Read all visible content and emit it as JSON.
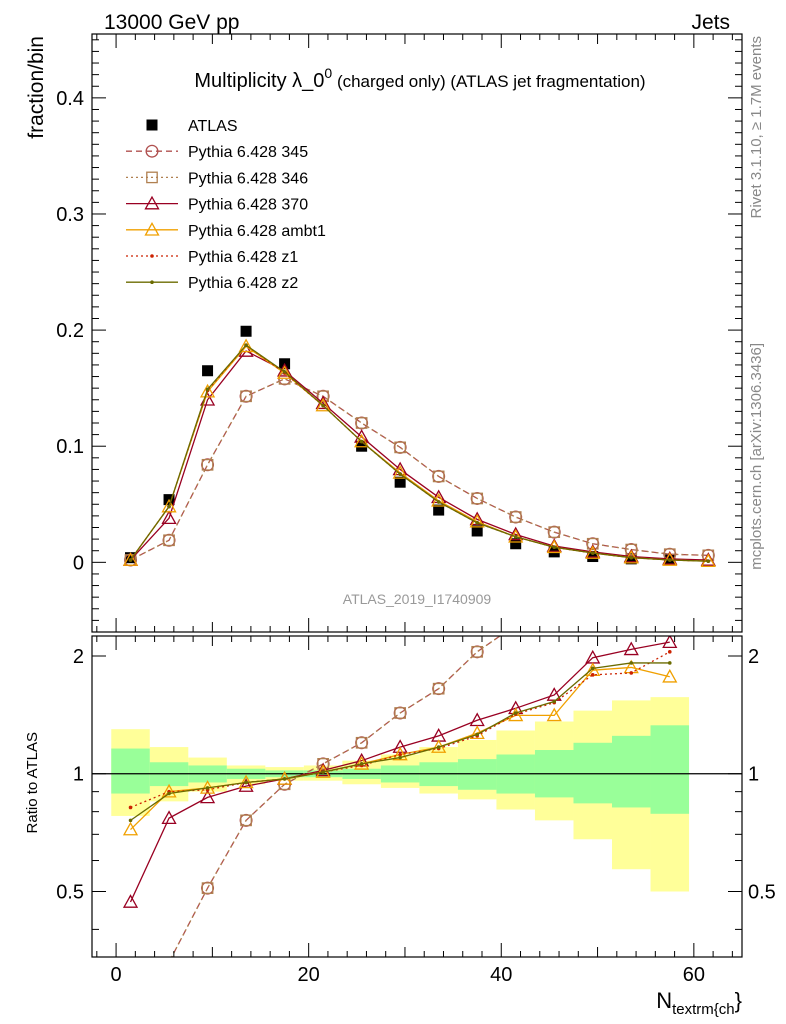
{
  "header": {
    "left": "13000 GeV pp",
    "right": "Jets",
    "side_rivet": "Rivet 3.1.10, ≥ 1.7M events",
    "side_mcplots": "mcplots.cern.ch [arXiv:1306.3436]",
    "watermark": "ATLAS_2019_I1740909"
  },
  "chart_data": [
    {
      "type": "scatter",
      "panel": "main",
      "title_main": "Multiplicity λ_0",
      "title_sup": "0",
      "title_rest": " (charged only) (ATLAS jet fragmentation)",
      "ylabel": "fraction/bin",
      "xlim": [
        -2.5,
        65
      ],
      "ylim": [
        -0.06,
        0.455
      ],
      "yticks": [
        0,
        0.1,
        0.2,
        0.3,
        0.4
      ],
      "ytick_labels": [
        "0",
        "0.1",
        "0.2",
        "0.3",
        "0.4"
      ],
      "x": [
        1.5,
        5.5,
        9.5,
        13.5,
        17.5,
        21.5,
        25.5,
        29.5,
        33.5,
        37.5,
        41.5,
        45.5,
        49.5,
        53.5,
        57.5,
        61.5
      ],
      "series": [
        {
          "name": "ATLAS",
          "color": "#000000",
          "marker": "filled-square",
          "line": "none",
          "values": [
            0.004,
            0.054,
            0.165,
            0.199,
            0.171,
            null,
            0.1,
            0.069,
            0.045,
            0.027,
            0.016,
            0.009,
            0.005,
            0.003,
            0.002,
            null
          ]
        },
        {
          "name": "Pythia 6.428 345",
          "color": "#b0504f",
          "marker": "open-circle",
          "line": "dashed",
          "values": [
            0.002,
            0.019,
            0.084,
            0.143,
            0.158,
            0.143,
            0.12,
            0.099,
            0.074,
            0.055,
            0.039,
            0.026,
            0.016,
            0.011,
            0.007,
            0.006
          ]
        },
        {
          "name": "Pythia 6.428 346",
          "color": "#b08050",
          "marker": "open-square",
          "line": "dotted",
          "values": [
            0.002,
            0.019,
            0.084,
            0.143,
            0.158,
            0.143,
            0.12,
            0.099,
            0.074,
            0.055,
            0.039,
            0.026,
            0.016,
            0.011,
            0.007,
            0.006
          ]
        },
        {
          "name": "Pythia 6.428 370",
          "color": "#990022",
          "marker": "open-triangle",
          "line": "solid",
          "values": [
            0.002,
            0.038,
            0.14,
            0.182,
            0.165,
            0.137,
            0.108,
            0.08,
            0.056,
            0.037,
            0.024,
            0.014,
            0.009,
            0.005,
            0.003,
            0.002
          ]
        },
        {
          "name": "Pythia 6.428 ambt1",
          "color": "#f0a000",
          "marker": "open-triangle",
          "line": "solid",
          "values": [
            0.002,
            0.048,
            0.147,
            0.186,
            0.163,
            0.135,
            0.104,
            0.077,
            0.053,
            0.035,
            0.022,
            0.013,
            0.008,
            0.004,
            0.002,
            0.001
          ]
        },
        {
          "name": "Pythia 6.428 z1",
          "color": "#cc2200",
          "marker": "dot",
          "line": "dotted",
          "values": [
            0.002,
            0.048,
            0.148,
            0.187,
            0.163,
            0.135,
            0.104,
            0.076,
            0.052,
            0.034,
            0.022,
            0.013,
            0.008,
            0.004,
            0.002,
            0.001
          ]
        },
        {
          "name": "Pythia 6.428 z2",
          "color": "#6b6b00",
          "marker": "dot",
          "line": "solid",
          "values": [
            0.002,
            0.048,
            0.149,
            0.187,
            0.164,
            0.135,
            0.104,
            0.076,
            0.052,
            0.034,
            0.022,
            0.013,
            0.008,
            0.004,
            0.002,
            0.001
          ]
        }
      ]
    },
    {
      "type": "line",
      "panel": "ratio",
      "ylabel": "Ratio to ATLAS",
      "xlabel_main": "N",
      "xlabel_sub": "textrm{ch",
      "xlabel_tail": "}",
      "xlim": [
        -2.5,
        65
      ],
      "ylim": [
        0.34,
        2.25
      ],
      "xticks": [
        0,
        20,
        40,
        60
      ],
      "xtick_labels": [
        "0",
        "20",
        "40",
        "60"
      ],
      "yticks": [
        0.5,
        1,
        2
      ],
      "ytick_labels": [
        "0.5",
        "1",
        "2"
      ],
      "band_edges": [
        -0.5,
        3.5,
        7.5,
        11.5,
        15.5,
        19.5,
        23.5,
        27.5,
        31.5,
        35.5,
        39.5,
        43.5,
        47.5,
        51.5,
        55.5,
        59.5
      ],
      "band_inner": [
        [
          0.89,
          1.16
        ],
        [
          0.93,
          1.07
        ],
        [
          0.95,
          1.05
        ],
        [
          0.97,
          1.03
        ],
        [
          0.98,
          1.02
        ],
        [
          0.98,
          1.02
        ],
        [
          0.97,
          1.03
        ],
        [
          0.95,
          1.05
        ],
        [
          0.93,
          1.07
        ],
        [
          0.91,
          1.09
        ],
        [
          0.89,
          1.12
        ],
        [
          0.87,
          1.15
        ],
        [
          0.84,
          1.2
        ],
        [
          0.82,
          1.25
        ],
        [
          0.79,
          1.33
        ]
      ],
      "band_outer": [
        [
          0.78,
          1.3
        ],
        [
          0.85,
          1.17
        ],
        [
          0.9,
          1.1
        ],
        [
          0.94,
          1.05
        ],
        [
          0.96,
          1.04
        ],
        [
          0.96,
          1.05
        ],
        [
          0.94,
          1.08
        ],
        [
          0.92,
          1.12
        ],
        [
          0.89,
          1.17
        ],
        [
          0.86,
          1.22
        ],
        [
          0.81,
          1.29
        ],
        [
          0.76,
          1.36
        ],
        [
          0.68,
          1.45
        ],
        [
          0.57,
          1.54
        ],
        [
          0.5,
          1.57
        ]
      ],
      "x": [
        1.5,
        5.5,
        9.5,
        13.5,
        17.5,
        21.5,
        25.5,
        29.5,
        33.5,
        37.5,
        41.5,
        45.5,
        49.5,
        53.5,
        57.5,
        61.5
      ],
      "series": [
        {
          "name": "Pythia 6.428 345",
          "color": "#b0504f",
          "marker": "open-circle",
          "line": "dashed",
          "values": [
            null,
            0.33,
            0.51,
            0.76,
            0.94,
            1.06,
            1.2,
            1.43,
            1.65,
            2.05,
            2.4,
            null,
            null,
            null,
            null,
            null
          ]
        },
        {
          "name": "Pythia 6.428 346",
          "color": "#b08050",
          "marker": "open-square",
          "line": "dotted",
          "values": [
            null,
            0.33,
            0.51,
            0.76,
            0.94,
            1.06,
            1.2,
            1.43,
            1.65,
            2.05,
            2.4,
            null,
            null,
            null,
            null,
            null
          ]
        },
        {
          "name": "Pythia 6.428 370",
          "color": "#990022",
          "marker": "open-triangle",
          "line": "solid",
          "values": [
            0.47,
            0.77,
            0.87,
            0.93,
            0.97,
            1.02,
            1.08,
            1.17,
            1.25,
            1.37,
            1.47,
            1.59,
            1.98,
            2.08,
            2.17,
            null
          ]
        },
        {
          "name": "Pythia 6.428 ambt1",
          "color": "#f0a000",
          "marker": "open-triangle",
          "line": "solid",
          "values": [
            0.72,
            0.9,
            0.92,
            0.95,
            0.97,
            1.01,
            1.06,
            1.12,
            1.17,
            1.27,
            1.41,
            1.41,
            1.84,
            1.87,
            1.77,
            null
          ]
        },
        {
          "name": "Pythia 6.428 z1",
          "color": "#cc2200",
          "marker": "dot",
          "line": "dotted",
          "values": [
            0.82,
            0.9,
            0.91,
            0.95,
            0.97,
            1.01,
            1.05,
            1.12,
            1.16,
            1.25,
            1.42,
            1.52,
            1.79,
            1.81,
            2.05,
            null
          ]
        },
        {
          "name": "Pythia 6.428 z2",
          "color": "#6b6b00",
          "marker": "dot",
          "line": "solid",
          "values": [
            0.76,
            0.89,
            0.92,
            0.95,
            0.97,
            1.01,
            1.06,
            1.1,
            1.17,
            1.26,
            1.43,
            1.53,
            1.86,
            1.92,
            1.92,
            null
          ]
        }
      ]
    }
  ]
}
